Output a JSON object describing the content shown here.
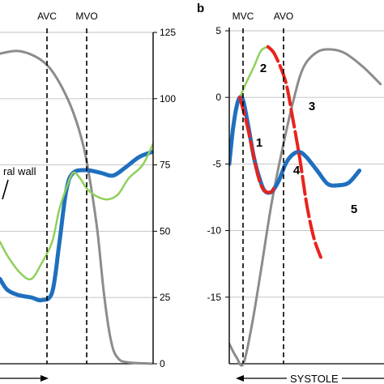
{
  "panel_a": {
    "right_axis_ticks": [
      "125",
      "100",
      "75",
      "50",
      "25",
      "0"
    ],
    "event_labels": [
      "AVC",
      "MVO"
    ],
    "annotation": "ral wall"
  },
  "panel_b": {
    "panel_label": "b",
    "left_axis_ticks": [
      "5",
      "0",
      "-5",
      "-10",
      "-15"
    ],
    "event_labels": [
      "MVC",
      "AVO"
    ],
    "segment_labels": [
      "1",
      "2",
      "3",
      "4",
      "5"
    ],
    "phase_label": "SYSTOLE"
  },
  "chart_data": [
    {
      "type": "line",
      "panel": "a",
      "y_right_range": [
        0,
        125
      ],
      "y_right_ticks": [
        0,
        25,
        50,
        75,
        100,
        125
      ],
      "grid": true,
      "events": [
        "AVC",
        "MVO"
      ],
      "colors": {
        "grey": "#8c8c8c",
        "blue": "#1f6fbf",
        "green": "#8fd05a"
      },
      "series": [
        {
          "color": "grey",
          "points": [
            [
              0,
              117
            ],
            [
              10,
              118
            ],
            [
              20,
              116
            ],
            [
              28,
              112
            ],
            [
              35,
              105
            ],
            [
              42,
              95
            ],
            [
              48,
              82
            ],
            [
              52,
              68
            ],
            [
              56,
              50
            ],
            [
              60,
              25
            ],
            [
              64,
              8
            ],
            [
              68,
              2
            ],
            [
              74,
              0.5
            ],
            [
              90,
              0
            ],
            [
              100,
              0
            ]
          ]
        },
        {
          "color": "blue",
          "points": [
            [
              0,
              32
            ],
            [
              4,
              28
            ],
            [
              10,
              26
            ],
            [
              18,
              25
            ],
            [
              24,
              24
            ],
            [
              30,
              27
            ],
            [
              34,
              45
            ],
            [
              38,
              65
            ],
            [
              42,
              72
            ],
            [
              50,
              73
            ],
            [
              58,
              72
            ],
            [
              65,
              71
            ],
            [
              72,
              74
            ],
            [
              80,
              78
            ],
            [
              88,
              80
            ]
          ]
        },
        {
          "color": "green",
          "points": [
            [
              0,
              46
            ],
            [
              5,
              40
            ],
            [
              12,
              34
            ],
            [
              18,
              32
            ],
            [
              24,
              38
            ],
            [
              30,
              46
            ],
            [
              34,
              58
            ],
            [
              38,
              66
            ],
            [
              42,
              72
            ],
            [
              46,
              70
            ],
            [
              50,
              66
            ],
            [
              56,
              63
            ],
            [
              62,
              62
            ],
            [
              68,
              64
            ],
            [
              74,
              70
            ],
            [
              82,
              75
            ],
            [
              88,
              83
            ]
          ]
        }
      ]
    },
    {
      "type": "line",
      "panel": "b",
      "y_left_range": [
        -20,
        5
      ],
      "y_left_ticks": [
        5,
        0,
        -5,
        -10,
        -15
      ],
      "grid": true,
      "events": [
        "MVC",
        "AVO"
      ],
      "colors": {
        "grey": "#8c8c8c",
        "blue": "#1f6fbf",
        "green": "#8fd05a",
        "red": "#e8231d"
      },
      "series": [
        {
          "color": "grey",
          "points": [
            [
              0,
              -18.5
            ],
            [
              4,
              -19.5
            ],
            [
              8,
              -20
            ],
            [
              13,
              -17
            ],
            [
              18,
              -13
            ],
            [
              24,
              -8
            ],
            [
              30,
              -4
            ],
            [
              36,
              -0.5
            ],
            [
              42,
              2.2
            ],
            [
              50,
              3.4
            ],
            [
              58,
              3.6
            ],
            [
              66,
              3.3
            ],
            [
              76,
              2.3
            ],
            [
              86,
              1
            ]
          ]
        },
        {
          "color": "blue",
          "points": [
            [
              0,
              -5
            ],
            [
              2,
              -2.5
            ],
            [
              4,
              -0.8
            ],
            [
              6,
              0
            ],
            [
              8,
              -0.3
            ],
            [
              11,
              -2.3
            ],
            [
              14,
              -4.5
            ],
            [
              17,
              -6
            ],
            [
              20,
              -7
            ],
            [
              24,
              -7.1
            ],
            [
              28,
              -6.3
            ],
            [
              32,
              -5
            ],
            [
              36,
              -4.3
            ],
            [
              40,
              -4.1
            ],
            [
              44,
              -4.5
            ],
            [
              50,
              -5.5
            ],
            [
              56,
              -6.5
            ],
            [
              62,
              -6.6
            ],
            [
              68,
              -6.4
            ],
            [
              74,
              -5.5
            ]
          ]
        },
        {
          "color": "green",
          "points": [
            [
              6,
              0
            ],
            [
              10,
              1.2
            ],
            [
              14,
              2.3
            ],
            [
              18,
              3.5
            ],
            [
              22,
              3.8
            ]
          ]
        },
        {
          "color": "red",
          "points": [
            [
              6,
              0
            ],
            [
              10,
              -2
            ],
            [
              14,
              -4.5
            ],
            [
              17,
              -6.2
            ],
            [
              20,
              -7
            ],
            [
              24,
              -7.1
            ],
            [
              26,
              -6.5
            ]
          ]
        },
        {
          "color": "red",
          "points": [
            [
              22,
              3.8
            ],
            [
              26,
              3.2
            ],
            [
              32,
              1.2
            ],
            [
              36,
              -1.5
            ],
            [
              40,
              -4.5
            ],
            [
              44,
              -8
            ],
            [
              48,
              -10.5
            ],
            [
              52,
              -12
            ]
          ]
        }
      ]
    }
  ]
}
